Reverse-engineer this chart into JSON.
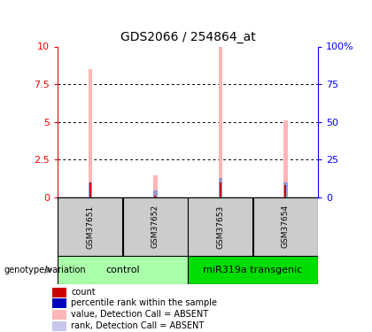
{
  "title": "GDS2066 / 254864_at",
  "samples": [
    "GSM37651",
    "GSM37652",
    "GSM37653",
    "GSM37654"
  ],
  "pink_values": [
    8.5,
    1.5,
    10.0,
    5.1
  ],
  "blue_values": [
    1.0,
    0.45,
    1.3,
    1.0
  ],
  "red_values": [
    1.0,
    0.12,
    1.0,
    0.85
  ],
  "ylim": [
    0,
    10
  ],
  "yticks_left": [
    0,
    2.5,
    5,
    7.5,
    10
  ],
  "yticks_right_labels": [
    "0",
    "25",
    "50",
    "75",
    "100%"
  ],
  "yticks_right_vals": [
    0,
    2.5,
    5,
    7.5,
    10
  ],
  "groups": [
    {
      "label": "control",
      "samples": [
        0,
        1
      ],
      "color": "#aaffaa"
    },
    {
      "label": "miR319a transgenic",
      "samples": [
        2,
        3
      ],
      "color": "#00dd00"
    }
  ],
  "genotype_label": "genotype/variation",
  "pink_color": "#ffb6b6",
  "blue_color": "#9999cc",
  "red_color": "#cc0000",
  "left_axis_color": "red",
  "right_axis_color": "blue",
  "sample_box_color": "#cccccc",
  "legend_items": [
    {
      "color": "#cc0000",
      "label": "count"
    },
    {
      "color": "#0000bb",
      "label": "percentile rank within the sample"
    },
    {
      "color": "#ffb6b6",
      "label": "value, Detection Call = ABSENT"
    },
    {
      "color": "#c8c8ee",
      "label": "rank, Detection Call = ABSENT"
    }
  ]
}
